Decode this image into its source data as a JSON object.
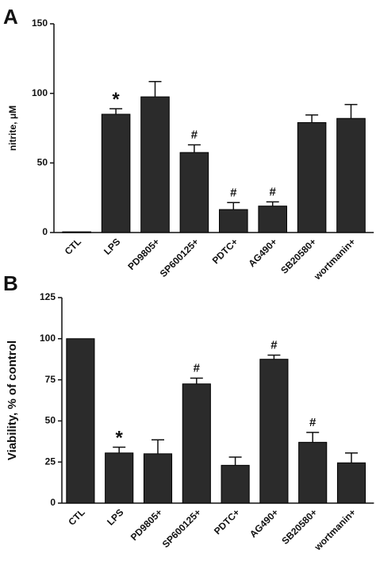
{
  "chart_data": [
    {
      "type": "bar",
      "panel_label": "A",
      "y_label": "nitrite, μM",
      "categories": [
        "CTL",
        "LPS",
        "PD9805+",
        "SP600125+",
        "PDTC+",
        "AG490+",
        "SB20580+",
        "wortmanin+"
      ],
      "values": [
        0.5,
        85,
        97.5,
        57.5,
        16.5,
        19,
        79,
        82
      ],
      "errors": [
        0,
        4,
        11,
        5.5,
        5,
        3,
        5.5,
        10
      ],
      "annotations": [
        null,
        "*",
        null,
        "#",
        "#",
        "#",
        null,
        null
      ],
      "color": "#2b2b2b",
      "ylim": [
        0,
        150
      ],
      "yticks": [
        0,
        50,
        100,
        150
      ]
    },
    {
      "type": "bar",
      "panel_label": "B",
      "y_label": "Viability, % of control",
      "categories": [
        "CTL",
        "LPS",
        "PD9805+",
        "SP600125+",
        "PDTC+",
        "AG490+",
        "SB20580+",
        "wortmanin+"
      ],
      "values": [
        100,
        30.5,
        30,
        72.5,
        23,
        87.5,
        37,
        24.5
      ],
      "errors": [
        0,
        3.5,
        8.5,
        3.5,
        5,
        2.5,
        6,
        6
      ],
      "annotations": [
        null,
        "*",
        null,
        "#",
        null,
        "#",
        "#",
        null
      ],
      "color": "#2b2b2b",
      "ylim": [
        0,
        125
      ],
      "yticks": [
        0,
        25,
        50,
        75,
        100,
        125
      ]
    }
  ]
}
